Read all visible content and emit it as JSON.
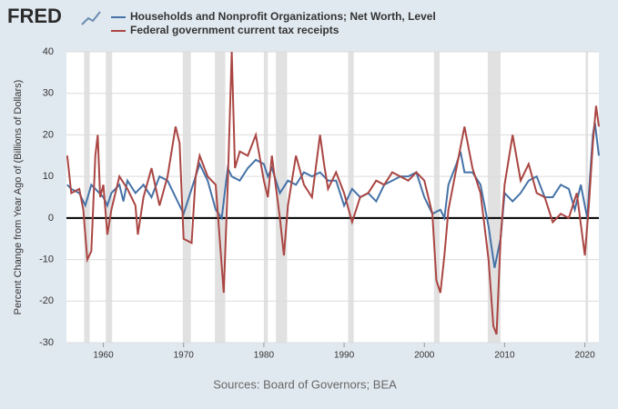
{
  "logo": "FRED",
  "chart_data": {
    "type": "line",
    "y_label": "Percent Change from Year Ago of (Billions of Dollars)",
    "source": "Sources: Board of Governors; BEA",
    "xlim": [
      1955.4,
      2021.75
    ],
    "xticks": [
      1960,
      1970,
      1980,
      1990,
      2000,
      2010,
      2020
    ],
    "ylim": [
      -30,
      40
    ],
    "yticks": [
      -30,
      -20,
      -10,
      0,
      10,
      20,
      30,
      40
    ],
    "grid": true,
    "recessions": [
      [
        1957.6,
        1958.3
      ],
      [
        1960.3,
        1961.1
      ],
      [
        1969.9,
        1970.9
      ],
      [
        1973.9,
        1975.2
      ],
      [
        1980.0,
        1980.5
      ],
      [
        1981.5,
        1982.9
      ],
      [
        1990.5,
        1991.2
      ],
      [
        2001.2,
        2001.9
      ],
      [
        2007.9,
        2009.5
      ],
      [
        2020.1,
        2020.4
      ]
    ],
    "series": [
      {
        "name": "Households and Nonprofit Organizations; Net Worth, Level",
        "color": "#4572a7",
        "x": [
          1955.5,
          1956,
          1957,
          1957.75,
          1958.5,
          1959,
          1960,
          1960.5,
          1961,
          1962,
          1962.5,
          1963,
          1964,
          1965,
          1966,
          1967,
          1968,
          1969,
          1970,
          1971,
          1972,
          1973,
          1974,
          1974.75,
          1975.5,
          1976,
          1977,
          1978,
          1979,
          1980,
          1980.5,
          1981,
          1982,
          1983,
          1984,
          1985,
          1986,
          1987,
          1988,
          1989,
          1990,
          1991,
          1992,
          1993,
          1994,
          1995,
          1996,
          1997,
          1998,
          1999,
          2000,
          2001,
          2002,
          2002.5,
          2003,
          2004,
          2004.5,
          2005,
          2006,
          2007,
          2008,
          2008.75,
          2009.5,
          2010,
          2011,
          2012,
          2013,
          2014,
          2015,
          2016,
          2017,
          2018,
          2018.75,
          2019.5,
          2020,
          2020.3,
          2021,
          2021.25,
          2021.75
        ],
        "values": [
          8,
          7,
          6,
          3,
          8,
          7,
          5,
          3,
          6,
          8,
          4,
          9,
          6,
          8,
          5,
          10,
          9,
          5,
          1,
          7,
          13,
          9,
          2,
          0,
          12,
          10,
          9,
          12,
          14,
          13,
          10,
          12,
          6,
          9,
          8,
          11,
          10,
          11,
          9,
          9,
          3,
          7,
          5,
          6,
          4,
          8,
          9,
          10,
          10,
          11,
          5,
          1,
          2,
          0,
          8,
          13,
          16,
          11,
          11,
          8,
          -2,
          -12,
          -5,
          6,
          4,
          6,
          9,
          10,
          5,
          5,
          8,
          7,
          2,
          8,
          3,
          0,
          20,
          23,
          15
        ]
      },
      {
        "name": "Federal government current tax receipts",
        "color": "#aa4643",
        "x": [
          1955.5,
          1956,
          1957,
          1957.5,
          1958,
          1958.5,
          1959,
          1959.3,
          1959.6,
          1960,
          1960.5,
          1961,
          1962,
          1963,
          1964,
          1964.3,
          1965,
          1966,
          1967,
          1968,
          1968.5,
          1969,
          1969.5,
          1970,
          1971,
          1971.5,
          1972,
          1973,
          1974,
          1975,
          1975.5,
          1976,
          1976.4,
          1977,
          1978,
          1979,
          1980,
          1980.5,
          1981,
          1982,
          1982.5,
          1983,
          1984,
          1985,
          1986,
          1987,
          1987.5,
          1988,
          1989,
          1990,
          1991,
          1992,
          1993,
          1994,
          1995,
          1996,
          1997,
          1998,
          1999,
          2000,
          2001,
          2001.5,
          2002,
          2002.5,
          2003,
          2004,
          2005,
          2005.5,
          2006,
          2007,
          2008,
          2008.6,
          2009,
          2009.5,
          2010,
          2011,
          2012,
          2013,
          2014,
          2015,
          2016,
          2017,
          2018,
          2019,
          2020,
          2020.5,
          2021,
          2021.4,
          2021.75
        ],
        "values": [
          15,
          6,
          7,
          2,
          -10,
          -8,
          15,
          20,
          5,
          8,
          -4,
          2,
          10,
          7,
          3,
          -4,
          5,
          12,
          3,
          10,
          16,
          22,
          18,
          -5,
          -6,
          10,
          15,
          10,
          8,
          -18,
          8,
          40,
          12,
          16,
          15,
          20,
          9,
          5,
          15,
          0,
          -9,
          3,
          15,
          8,
          5,
          20,
          13,
          7,
          11,
          6,
          -1,
          5,
          6,
          9,
          8,
          11,
          10,
          9,
          11,
          9,
          1,
          -15,
          -18,
          -9,
          2,
          12,
          22,
          17,
          12,
          6,
          -10,
          -26,
          -28,
          -5,
          8,
          20,
          9,
          13,
          6,
          5,
          -1,
          1,
          0,
          6,
          -9,
          3,
          18,
          27,
          22
        ]
      }
    ]
  }
}
